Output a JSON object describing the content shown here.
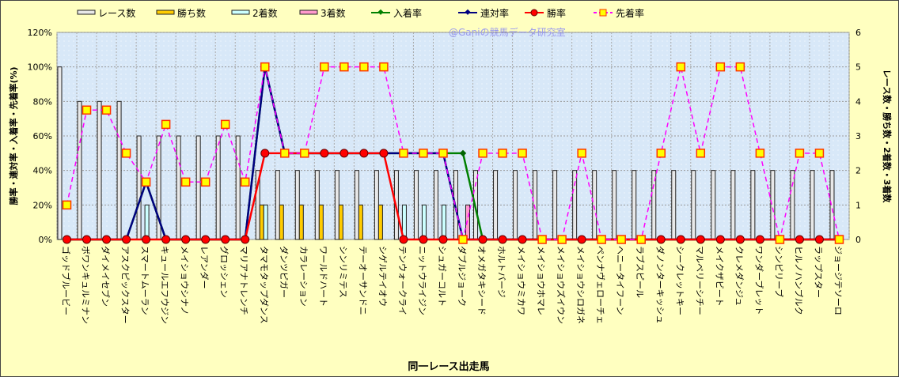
{
  "chart_data": {
    "type": "bar+line",
    "watermark": "@Ganiの競馬データ研究室",
    "xlabel": "同一レース出走馬",
    "ylabel_left": "勝率・連対率・入着率・先着率(%)",
    "ylabel_right": "レース数・勝ち数・2着数・3着数",
    "ylim_left": [
      0,
      120
    ],
    "ylim_right": [
      0,
      6
    ],
    "yticks_left": [
      "0%",
      "20%",
      "40%",
      "60%",
      "80%",
      "100%",
      "120%"
    ],
    "yticks_right": [
      "0",
      "1",
      "2",
      "3",
      "4",
      "5",
      "6"
    ],
    "legend_position": "top",
    "categories": [
      "ゴッドブルービー",
      "ボワンキュルミナン",
      "ダイメイセブン",
      "アスクピックスター",
      "スマートムーラン",
      "キュールエフウジン",
      "メイショウシナノ",
      "レアンダー",
      "グロッシェン",
      "マリアナトレンチ",
      "タマモタップダンス",
      "ダンツピガー",
      "カラレーション",
      "ワールドハート",
      "シンリミテス",
      "テーオーサンドニ",
      "シゲルテイオウ",
      "テンウォークライ",
      "ニットウライジン",
      "シュガーコルト",
      "ダブルジョーク",
      "オメガタキシード",
      "ホルトバージ",
      "メイショウミカワ",
      "メイショウホマレ",
      "メイショウズイウン",
      "メイショウシロガネ",
      "ペンナヴェローチェ",
      "ヘニータイフーン",
      "ラブスピール",
      "ダノンターキッシュ",
      "シークレットキー",
      "マルベリーシチー",
      "メイクザビート",
      "クレメダンジュ",
      "ワンダーブレット",
      "シンピリーブ",
      "ヒルノハンブルク",
      "ラップスター",
      "ジョージテソーロ"
    ],
    "bar_series": [
      {
        "name": "レース数",
        "color": "#e8e8e8",
        "values": [
          5,
          4,
          4,
          4,
          3,
          3,
          3,
          3,
          3,
          3,
          2,
          2,
          2,
          2,
          2,
          2,
          2,
          2,
          2,
          2,
          2,
          2,
          2,
          2,
          2,
          2,
          2,
          2,
          2,
          2,
          2,
          2,
          2,
          2,
          2,
          2,
          2,
          2,
          2,
          2
        ]
      },
      {
        "name": "勝ち数",
        "color": "#ffcc00",
        "values": [
          0,
          0,
          0,
          0,
          0,
          0,
          0,
          0,
          0,
          0,
          1,
          1,
          1,
          1,
          1,
          1,
          1,
          0,
          0,
          0,
          0,
          0,
          0,
          0,
          0,
          0,
          0,
          0,
          0,
          0,
          0,
          0,
          0,
          0,
          0,
          0,
          0,
          0,
          0,
          0
        ]
      },
      {
        "name": "2着数",
        "color": "#ccffff",
        "values": [
          0,
          0,
          0,
          0,
          1,
          0,
          0,
          0,
          0,
          0,
          1,
          0,
          0,
          0,
          0,
          0,
          0,
          1,
          1,
          1,
          0,
          0,
          0,
          0,
          0,
          0,
          0,
          0,
          0,
          0,
          0,
          0,
          0,
          0,
          0,
          0,
          0,
          0,
          0,
          0
        ]
      },
      {
        "name": "3着数",
        "color": "#ff99cc",
        "values": [
          0,
          0,
          0,
          0,
          0,
          0,
          0,
          0,
          0,
          0,
          0,
          0,
          0,
          0,
          0,
          0,
          0,
          0,
          0,
          0,
          1,
          0,
          0,
          0,
          0,
          0,
          0,
          0,
          0,
          0,
          0,
          0,
          0,
          0,
          0,
          0,
          0,
          0,
          0,
          0
        ]
      }
    ],
    "line_series": [
      {
        "name": "入着率",
        "color": "#008000",
        "values": [
          0,
          0,
          0,
          0,
          33.3,
          0,
          0,
          0,
          0,
          0,
          100,
          50,
          50,
          50,
          50,
          50,
          50,
          50,
          50,
          50,
          50,
          0,
          0,
          0,
          0,
          0,
          0,
          0,
          0,
          0,
          0,
          0,
          0,
          0,
          0,
          0,
          0,
          0,
          0,
          0
        ]
      },
      {
        "name": "連対率",
        "color": "#000080",
        "values": [
          0,
          0,
          0,
          0,
          33.3,
          0,
          0,
          0,
          0,
          0,
          100,
          50,
          50,
          50,
          50,
          50,
          50,
          50,
          50,
          50,
          0,
          0,
          0,
          0,
          0,
          0,
          0,
          0,
          0,
          0,
          0,
          0,
          0,
          0,
          0,
          0,
          0,
          0,
          0,
          0
        ]
      },
      {
        "name": "勝率",
        "color": "#ff0000",
        "values": [
          0,
          0,
          0,
          0,
          0,
          0,
          0,
          0,
          0,
          0,
          50,
          50,
          50,
          50,
          50,
          50,
          50,
          0,
          0,
          0,
          0,
          0,
          0,
          0,
          0,
          0,
          0,
          0,
          0,
          0,
          0,
          0,
          0,
          0,
          0,
          0,
          0,
          0,
          0,
          0
        ]
      },
      {
        "name": "先着率",
        "color": "#ff00ff",
        "values": [
          20,
          75,
          75,
          50,
          33.3,
          66.7,
          33.3,
          33.3,
          66.7,
          33.3,
          100,
          50,
          50,
          100,
          100,
          100,
          100,
          50,
          50,
          50,
          0,
          50,
          50,
          50,
          0,
          0,
          50,
          0,
          0,
          0,
          50,
          100,
          50,
          100,
          100,
          50,
          0,
          50,
          50,
          0
        ]
      }
    ]
  }
}
